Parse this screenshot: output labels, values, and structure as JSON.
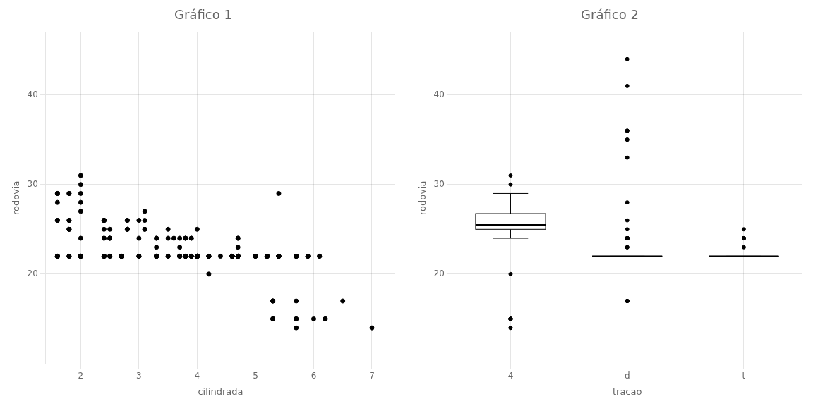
{
  "chart_data": [
    {
      "type": "scatter",
      "title": "Gráfico 1",
      "xlabel": "cilindrada",
      "ylabel": "rodovia",
      "x": [
        1.8,
        1.8,
        2.0,
        2.0,
        2.8,
        2.8,
        3.1,
        1.8,
        1.8,
        2.0,
        2.0,
        2.8,
        2.8,
        3.1,
        2.8,
        3.1,
        4.2,
        5.3,
        5.3,
        5.3,
        5.7,
        6.0,
        5.7,
        5.7,
        6.2,
        6.2,
        7.0,
        5.3,
        5.3,
        5.3,
        5.7,
        6.5,
        2.4,
        2.4,
        3.1,
        3.5,
        3.6,
        2.4,
        3.0,
        3.3,
        3.3,
        3.3,
        3.3,
        3.3,
        3.8,
        3.8,
        3.8,
        4.0,
        3.7,
        3.7,
        3.9,
        3.9,
        4.7,
        4.7,
        4.7,
        5.2,
        5.2,
        3.9,
        4.7,
        4.7,
        4.7,
        5.2,
        5.7,
        5.9,
        4.7,
        4.7,
        4.7,
        4.7,
        4.7,
        4.7,
        5.2,
        5.2,
        5.7,
        5.9,
        4.6,
        5.4,
        5.4,
        4.0,
        4.0,
        4.0,
        4.0,
        4.6,
        5.0,
        4.2,
        4.2,
        4.6,
        4.6,
        4.6,
        5.4,
        5.4,
        3.8,
        3.8,
        4.0,
        4.0,
        4.6,
        4.6,
        4.6,
        4.6,
        5.4,
        1.6,
        1.6,
        1.6,
        1.6,
        1.6,
        1.8,
        1.8,
        1.8,
        2.0,
        2.4,
        2.4,
        2.4,
        2.4,
        2.5,
        2.5,
        3.3,
        2.0,
        2.0,
        2.0,
        2.0,
        2.7,
        2.7,
        2.7,
        3.0,
        3.7,
        4.0,
        4.7,
        4.7,
        4.7,
        5.7,
        6.1,
        4.0,
        4.2,
        4.4,
        4.6,
        5.4,
        5.4,
        5.4,
        4.0,
        4.0,
        4.6,
        5.0,
        2.4,
        2.4,
        2.5,
        2.5,
        3.5,
        3.5,
        3.0,
        3.0,
        3.5,
        3.3,
        3.3,
        3.3,
        3.3,
        3.8,
        3.8,
        3.8,
        4.0,
        3.7,
        3.7,
        3.9,
        3.9,
        4.7,
        4.7,
        4.7,
        5.2,
        5.2,
        3.9,
        4.7,
        4.7,
        4.7,
        5.2,
        5.7,
        5.9,
        4.6,
        5.4,
        5.4,
        4.0,
        4.0,
        4.0,
        4.0,
        4.6,
        5.0,
        4.2,
        4.2,
        4.6,
        4.6,
        4.6,
        5.4,
        5.4,
        3.8,
        3.8,
        4.0,
        4.0,
        4.6,
        4.6,
        4.6,
        4.6,
        5.4,
        1.6,
        1.6,
        1.6,
        1.6,
        1.6,
        1.8,
        1.8,
        1.8,
        2.0,
        2.4,
        2.4,
        2.4,
        2.4,
        2.5,
        2.5,
        3.3,
        2.0,
        2.0,
        2.0,
        2.0,
        2.7,
        2.7,
        2.7,
        3.0,
        3.7,
        4.0,
        4.7,
        4.7,
        4.7,
        5.7,
        6.1
      ],
      "values": [
        29,
        29,
        31,
        30,
        26,
        26,
        27,
        26,
        25,
        28,
        27,
        25,
        25,
        25,
        25,
        25,
        20,
        15,
        15,
        15,
        15,
        15,
        14,
        15,
        15,
        15,
        14,
        17,
        17,
        17,
        17,
        17,
        26,
        26,
        26,
        25,
        24,
        24,
        26,
        23,
        22,
        24,
        22,
        22,
        24,
        24,
        24,
        25,
        24,
        23,
        24,
        24,
        24,
        23,
        22,
        22,
        22,
        22,
        22,
        24,
        22,
        22,
        22,
        22,
        22,
        22,
        22,
        22,
        22,
        22,
        22,
        22,
        22,
        22,
        22,
        22,
        22,
        22,
        22,
        22,
        22,
        22,
        22,
        22,
        22,
        22,
        22,
        22,
        22,
        22,
        22,
        22,
        22,
        22,
        22,
        22,
        22,
        22,
        29,
        29,
        28,
        29,
        26,
        26,
        26,
        25,
        25,
        29,
        26,
        26,
        26,
        25,
        25,
        24,
        24,
        24,
        22,
        22,
        22,
        22,
        22,
        22,
        22,
        22,
        22,
        22,
        22,
        22,
        22,
        22,
        22,
        22,
        22,
        22,
        22,
        22,
        22,
        22,
        22,
        22,
        22,
        22,
        24,
        24,
        24,
        22,
        24,
        24,
        22,
        22,
        22,
        22,
        22,
        22,
        22,
        22,
        22,
        22,
        22,
        22,
        22,
        22,
        22,
        22,
        22,
        22,
        22,
        22,
        22,
        22,
        22,
        22,
        22,
        22,
        22,
        22,
        22,
        22,
        22,
        22,
        22,
        22,
        22,
        22,
        22,
        22,
        22,
        22,
        22,
        22,
        22,
        22,
        22,
        22,
        22,
        22,
        22,
        22,
        22,
        22,
        22,
        22,
        22,
        22,
        22,
        22,
        22,
        22,
        22,
        22,
        22,
        22,
        22,
        22,
        22,
        22,
        22,
        22,
        22,
        22,
        22,
        22,
        22,
        22,
        22,
        22,
        22,
        22,
        22,
        22
      ],
      "color": "#000000",
      "xlim": [
        1.4,
        7.4
      ],
      "ylim": [
        10,
        47
      ],
      "xticks": [
        2,
        3,
        4,
        5,
        6,
        7
      ],
      "yticks": [
        20,
        30,
        40
      ],
      "grid": true
    },
    {
      "type": "boxplot",
      "title": "Gráfico 2",
      "xlabel": "tracao",
      "ylabel": "rodovia",
      "categories": [
        "4",
        "d",
        "t"
      ],
      "whisker_low": [
        24,
        22,
        22
      ],
      "q1": [
        25,
        22,
        22
      ],
      "median": [
        25.5,
        22,
        22
      ],
      "q3": [
        26.75,
        22,
        22
      ],
      "whisker_high": [
        29,
        22,
        22
      ],
      "outliers": [
        [
          20,
          15,
          15,
          15,
          15,
          15,
          14,
          15,
          15,
          15,
          14,
          31,
          30
        ],
        [
          17,
          17,
          17,
          17,
          17,
          26,
          23,
          24,
          24,
          24,
          24,
          24,
          23,
          24,
          24,
          24,
          23,
          24,
          24,
          24,
          24,
          24,
          44,
          41,
          36,
          36,
          36,
          35,
          35,
          33,
          28,
          25,
          24,
          24,
          24
        ],
        [
          25,
          24,
          23,
          24,
          24,
          24
        ]
      ],
      "color": "#000000",
      "ylim": [
        10,
        47
      ],
      "yticks": [
        20,
        30,
        40
      ],
      "grid": true
    }
  ]
}
